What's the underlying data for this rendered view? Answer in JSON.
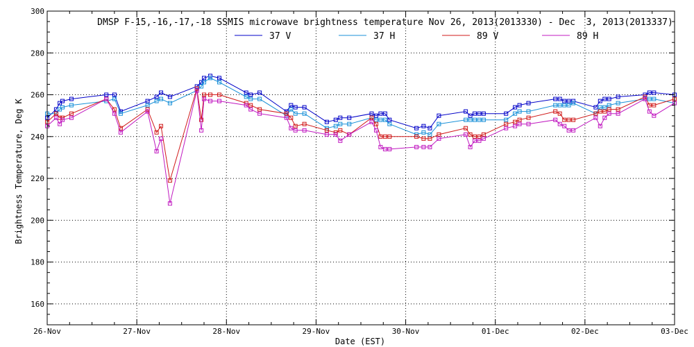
{
  "chart_data": {
    "type": "line",
    "title": "DMSP F-15,-16,-17,-18 SSMIS microwave brightness temperature Nov 26, 2013(2013330) - Dec  3, 2013(2013337)",
    "xlabel": "Date (EST)",
    "ylabel": "Brightness Temperature, Deg K",
    "xlim": [
      0,
      7
    ],
    "ylim": [
      150,
      300
    ],
    "yticks": [
      160,
      180,
      200,
      220,
      240,
      260,
      280,
      300
    ],
    "categories": [
      "26-Nov",
      "27-Nov",
      "28-Nov",
      "29-Nov",
      "30-Nov",
      "01-Dec",
      "02-Dec",
      "03-Dec"
    ],
    "grid": true,
    "legend": "top-center",
    "series": [
      {
        "name": "37 V",
        "color": "#0000c8",
        "x": [
          0.0,
          0.1,
          0.14,
          0.17,
          0.27,
          0.66,
          0.75,
          0.82,
          1.12,
          1.22,
          1.27,
          1.37,
          1.67,
          1.72,
          1.75,
          1.82,
          1.92,
          2.22,
          2.27,
          2.37,
          2.67,
          2.72,
          2.77,
          2.87,
          3.12,
          3.22,
          3.27,
          3.37,
          3.62,
          3.67,
          3.72,
          3.77,
          3.82,
          4.12,
          4.2,
          4.27,
          4.37,
          4.67,
          4.72,
          4.77,
          4.82,
          4.87,
          5.12,
          5.22,
          5.27,
          5.37,
          5.67,
          5.72,
          5.77,
          5.82,
          5.87,
          6.12,
          6.17,
          6.22,
          6.27,
          6.37,
          6.67,
          6.72,
          6.77,
          7.0
        ],
        "values": [
          249,
          253,
          256,
          257,
          258,
          260,
          260,
          252,
          257,
          259,
          261,
          259,
          264,
          266,
          268,
          269,
          268,
          261,
          260,
          261,
          252,
          255,
          254,
          254,
          247,
          248,
          249,
          249,
          251,
          250,
          251,
          251,
          248,
          244,
          245,
          244,
          250,
          252,
          250,
          251,
          251,
          251,
          251,
          254,
          255,
          256,
          258,
          258,
          257,
          257,
          257,
          254,
          257,
          258,
          258,
          259,
          260,
          261,
          261,
          260
        ]
      },
      {
        "name": "37 H",
        "color": "#1890d8",
        "x": [
          0.0,
          0.1,
          0.14,
          0.17,
          0.27,
          0.66,
          0.75,
          0.82,
          1.12,
          1.22,
          1.27,
          1.37,
          1.67,
          1.72,
          1.75,
          1.82,
          1.92,
          2.22,
          2.27,
          2.37,
          2.67,
          2.72,
          2.77,
          2.87,
          3.12,
          3.22,
          3.27,
          3.37,
          3.62,
          3.67,
          3.72,
          3.77,
          3.82,
          4.12,
          4.2,
          4.27,
          4.37,
          4.67,
          4.72,
          4.77,
          4.82,
          4.87,
          5.12,
          5.22,
          5.27,
          5.37,
          5.67,
          5.72,
          5.77,
          5.82,
          5.87,
          6.12,
          6.17,
          6.22,
          6.27,
          6.37,
          6.67,
          6.72,
          6.77,
          7.0
        ],
        "values": [
          251,
          251,
          253,
          254,
          255,
          257,
          258,
          251,
          255,
          257,
          258,
          256,
          262,
          264,
          266,
          268,
          266,
          259,
          258,
          258,
          250,
          253,
          251,
          251,
          244,
          245,
          246,
          246,
          249,
          248,
          248,
          248,
          246,
          241,
          242,
          241,
          246,
          248,
          248,
          248,
          248,
          248,
          248,
          251,
          252,
          252,
          255,
          255,
          255,
          255,
          256,
          251,
          254,
          254,
          255,
          256,
          258,
          258,
          258,
          256
        ]
      },
      {
        "name": "89 V",
        "color": "#d01818",
        "x": [
          0.0,
          0.1,
          0.14,
          0.17,
          0.27,
          0.66,
          0.75,
          0.82,
          1.12,
          1.22,
          1.27,
          1.37,
          1.67,
          1.72,
          1.75,
          1.82,
          1.92,
          2.22,
          2.27,
          2.37,
          2.67,
          2.72,
          2.77,
          2.87,
          3.12,
          3.22,
          3.27,
          3.37,
          3.62,
          3.67,
          3.72,
          3.77,
          3.82,
          4.12,
          4.2,
          4.27,
          4.37,
          4.67,
          4.72,
          4.77,
          4.82,
          4.87,
          5.12,
          5.22,
          5.27,
          5.37,
          5.67,
          5.72,
          5.77,
          5.82,
          5.87,
          6.12,
          6.17,
          6.22,
          6.27,
          6.37,
          6.67,
          6.72,
          6.77,
          7.0
        ],
        "values": [
          247,
          251,
          249,
          249,
          251,
          258,
          253,
          244,
          253,
          242,
          245,
          219,
          263,
          248,
          260,
          260,
          260,
          256,
          255,
          253,
          251,
          249,
          245,
          246,
          243,
          242,
          243,
          241,
          249,
          246,
          240,
          240,
          240,
          240,
          239,
          239,
          241,
          244,
          241,
          240,
          240,
          241,
          246,
          247,
          248,
          249,
          252,
          251,
          248,
          248,
          248,
          251,
          252,
          252,
          253,
          253,
          259,
          255,
          255,
          258
        ]
      },
      {
        "name": "89 H",
        "color": "#c018c0",
        "x": [
          0.0,
          0.1,
          0.14,
          0.17,
          0.27,
          0.66,
          0.75,
          0.82,
          1.12,
          1.22,
          1.27,
          1.37,
          1.67,
          1.72,
          1.75,
          1.82,
          1.92,
          2.22,
          2.27,
          2.37,
          2.67,
          2.72,
          2.77,
          2.87,
          3.12,
          3.22,
          3.27,
          3.37,
          3.62,
          3.67,
          3.72,
          3.77,
          3.82,
          4.12,
          4.2,
          4.27,
          4.37,
          4.67,
          4.72,
          4.77,
          4.82,
          4.87,
          5.12,
          5.22,
          5.27,
          5.37,
          5.67,
          5.72,
          5.77,
          5.82,
          5.87,
          6.12,
          6.17,
          6.22,
          6.27,
          6.37,
          6.67,
          6.72,
          6.77,
          7.0
        ],
        "values": [
          245,
          249,
          246,
          248,
          249,
          258,
          251,
          242,
          252,
          233,
          239,
          208,
          262,
          243,
          258,
          257,
          257,
          255,
          253,
          251,
          249,
          244,
          243,
          243,
          241,
          241,
          238,
          241,
          247,
          243,
          235,
          234,
          234,
          235,
          235,
          235,
          239,
          241,
          235,
          238,
          238,
          239,
          244,
          245,
          246,
          246,
          248,
          246,
          245,
          243,
          243,
          249,
          245,
          249,
          251,
          251,
          258,
          252,
          250,
          256
        ]
      }
    ]
  }
}
